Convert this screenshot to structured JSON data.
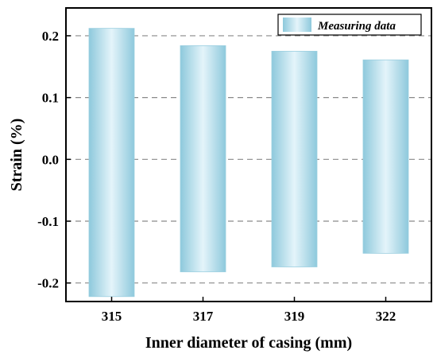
{
  "chart_data": {
    "type": "bar",
    "subtype": "floating-range",
    "categories": [
      "315",
      "317",
      "319",
      "322"
    ],
    "series": [
      {
        "name": "Measuring data",
        "low": [
          -0.222,
          -0.182,
          -0.174,
          -0.152
        ],
        "high": [
          0.212,
          0.184,
          0.175,
          0.161
        ]
      }
    ],
    "xlabel": "Inner diameter of casing (mm)",
    "ylabel": "Strain (%)",
    "ylim": [
      -0.23,
      0.245
    ],
    "yticks": [
      0.2,
      0.1,
      0.0,
      -0.1,
      -0.2
    ],
    "ytick_labels": [
      "0.2",
      "0.1",
      "0.0",
      "-0.1",
      "-0.2"
    ],
    "grid": "horizontal dashed",
    "legend_position": "top-right",
    "colors": {
      "bar_edge": "#8ec9dc",
      "bar_center": "#e4f4fa",
      "grid": "#8a8a8a",
      "axis": "#000000"
    }
  }
}
